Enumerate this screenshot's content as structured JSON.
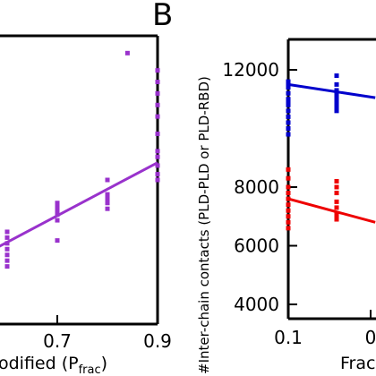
{
  "chart_data": [
    {
      "panel": "left",
      "type": "scatter",
      "xlabel_visible_main": "odified (P",
      "xlabel_visible_sub": "frac",
      "xlabel_visible_close": ")",
      "x_ticks": [
        "0.7",
        "0.9"
      ],
      "xlim": [
        0.6,
        0.9
      ],
      "ylim": [
        0,
        1
      ],
      "series": [
        {
          "color": "#9932cc",
          "points": [
            [
              0.6,
              0.28
            ],
            [
              0.6,
              0.3
            ],
            [
              0.6,
              0.26
            ],
            [
              0.6,
              0.24
            ],
            [
              0.6,
              0.32
            ],
            [
              0.6,
              0.22
            ],
            [
              0.6,
              0.2
            ],
            [
              0.7,
              0.38
            ],
            [
              0.7,
              0.41
            ],
            [
              0.7,
              0.4
            ],
            [
              0.7,
              0.39
            ],
            [
              0.7,
              0.42
            ],
            [
              0.7,
              0.36
            ],
            [
              0.7,
              0.29
            ],
            [
              0.8,
              0.4
            ],
            [
              0.8,
              0.43
            ],
            [
              0.8,
              0.44
            ],
            [
              0.8,
              0.45
            ],
            [
              0.8,
              0.42
            ],
            [
              0.8,
              0.5
            ],
            [
              0.84,
              0.94
            ],
            [
              0.9,
              0.5
            ],
            [
              0.9,
              0.55
            ],
            [
              0.9,
              0.6
            ],
            [
              0.9,
              0.66
            ],
            [
              0.9,
              0.72
            ],
            [
              0.9,
              0.76
            ],
            [
              0.9,
              0.8
            ],
            [
              0.9,
              0.84
            ],
            [
              0.9,
              0.88
            ],
            [
              0.9,
              0.52
            ],
            [
              0.9,
              0.58
            ]
          ],
          "fit": [
            [
              0.6,
              0.28
            ],
            [
              0.9,
              0.56
            ]
          ]
        }
      ]
    },
    {
      "panel": "right",
      "panel_letter": "B",
      "type": "scatter",
      "ylabel": "#Inter-chain contacts (PLD-PLD or PLD-RBD)",
      "xlabel_visible": "Frac",
      "x_ticks": [
        "0.1",
        "0"
      ],
      "y_ticks": [
        4000,
        6000,
        8000,
        12000
      ],
      "ylim": [
        3600,
        13100
      ],
      "xlim": [
        0.1,
        0.3
      ],
      "series": [
        {
          "color": "#0000cc",
          "points": [
            [
              0.1,
              11600
            ],
            [
              0.1,
              11400
            ],
            [
              0.1,
              11200
            ],
            [
              0.1,
              11000
            ],
            [
              0.1,
              10800
            ],
            [
              0.1,
              10600
            ],
            [
              0.1,
              10400
            ],
            [
              0.1,
              10200
            ],
            [
              0.1,
              10000
            ],
            [
              0.1,
              9800
            ],
            [
              0.1,
              11500
            ],
            [
              0.1,
              10900
            ],
            [
              0.2,
              11800
            ],
            [
              0.2,
              11500
            ],
            [
              0.2,
              11300
            ],
            [
              0.2,
              11100
            ],
            [
              0.2,
              11000
            ],
            [
              0.2,
              10900
            ],
            [
              0.2,
              10800
            ],
            [
              0.2,
              10700
            ],
            [
              0.2,
              10600
            ],
            [
              0.2,
              11200
            ]
          ],
          "fit": [
            [
              0.1,
              11500
            ],
            [
              0.28,
              11050
            ]
          ]
        },
        {
          "color": "#ee0000",
          "points": [
            [
              0.1,
              8600
            ],
            [
              0.1,
              8300
            ],
            [
              0.1,
              8000
            ],
            [
              0.1,
              7800
            ],
            [
              0.1,
              7600
            ],
            [
              0.1,
              7400
            ],
            [
              0.1,
              7200
            ],
            [
              0.1,
              7000
            ],
            [
              0.1,
              6800
            ],
            [
              0.1,
              6600
            ],
            [
              0.2,
              8200
            ],
            [
              0.2,
              8000
            ],
            [
              0.2,
              7800
            ],
            [
              0.2,
              7500
            ],
            [
              0.2,
              7300
            ],
            [
              0.2,
              7100
            ],
            [
              0.2,
              7000
            ],
            [
              0.2,
              6900
            ]
          ],
          "fit": [
            [
              0.1,
              7600
            ],
            [
              0.28,
              6800
            ]
          ]
        }
      ]
    }
  ]
}
